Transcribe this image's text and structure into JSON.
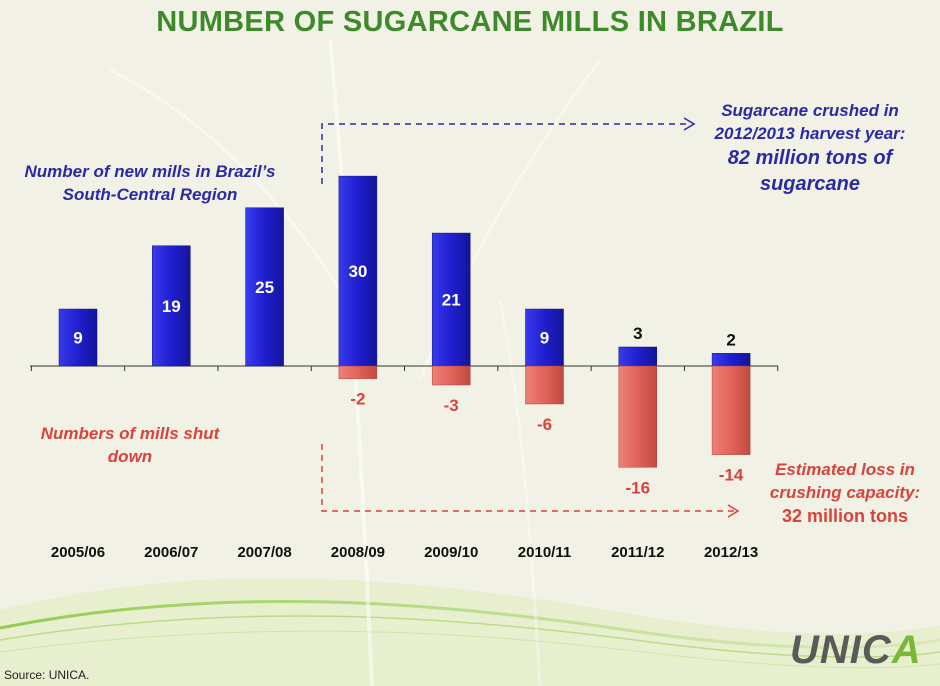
{
  "title": "NUMBER OF SUGARCANE MILLS IN BRAZIL",
  "annotations": {
    "new_mills": [
      "Number  of new mills in Brazil’s",
      "South-Central Region"
    ],
    "shut_down": [
      "Numbers of mills shut",
      "down"
    ],
    "crushed": [
      "Sugarcane crushed in",
      "2012/2013 harvest year:"
    ],
    "crushed_big": [
      "82 million tons of",
      "sugarcane"
    ],
    "loss": [
      "Estimated loss in",
      "crushing capacity:"
    ],
    "loss_big": "32 million tons"
  },
  "source": "Source: UNICA.",
  "logo": {
    "text_before": "UNIC",
    "text_accent": "A"
  },
  "colors": {
    "title": "#3d8a2a",
    "positive_bar": "#1f1fd0",
    "negative_bar": "#e0645a",
    "blue_text": "#2a2aa6",
    "red_text": "#d9433c"
  },
  "chart_data": {
    "type": "bar",
    "categories": [
      "2005/06",
      "2006/07",
      "2007/08",
      "2008/09",
      "2009/10",
      "2010/11",
      "2011/12",
      "2012/13"
    ],
    "series": [
      {
        "values": [
          9,
          19,
          25,
          30,
          21,
          9,
          3,
          2
        ]
      },
      {
        "values": [
          null,
          null,
          null,
          -2,
          -3,
          -6,
          -16,
          -14
        ]
      }
    ],
    "ylim": [
      -16,
      30
    ],
    "grid": false,
    "legend": "none",
    "annotations": [
      "Number  of new mills in Brazil’s South-Central Region",
      "Numbers of mills shut down",
      "Sugarcane crushed in 2012/2013 harvest year: 82 million tons of sugarcane",
      "Estimated loss in crushing capacity: 32 million tons"
    ]
  }
}
